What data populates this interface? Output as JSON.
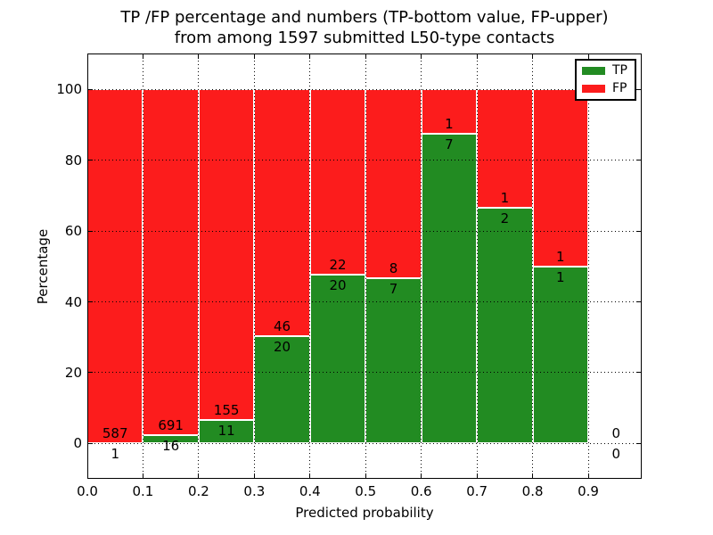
{
  "title": {
    "line1": "TP /FP percentage and numbers (TP-bottom value, FP-upper)",
    "line2": "from among 1597 submitted L50-type contacts"
  },
  "axes": {
    "xlabel": "Predicted probability",
    "ylabel": "Percentage"
  },
  "legend": {
    "items": [
      {
        "label": "TP",
        "color": "#228b22"
      },
      {
        "label": "FP",
        "color": "#fc1c1c"
      }
    ]
  },
  "chart_data": {
    "type": "bar",
    "stacked": true,
    "normalized": "each bin scaled to 100%, green TP fraction at bottom, red FP fraction on top",
    "title": "TP /FP percentage and numbers (TP-bottom value, FP-upper) from among 1597 submitted L50-type contacts",
    "xlabel": "Predicted probability",
    "ylabel": "Percentage",
    "total_contacts": 1597,
    "bin_width": 0.1,
    "categories": [
      "0.0-0.1",
      "0.1-0.2",
      "0.2-0.3",
      "0.3-0.4",
      "0.4-0.5",
      "0.5-0.6",
      "0.6-0.7",
      "0.7-0.8",
      "0.8-0.9",
      "0.9-1.0"
    ],
    "series": [
      {
        "name": "TP",
        "color": "#228b22",
        "counts": [
          1,
          16,
          11,
          20,
          20,
          7,
          7,
          2,
          1,
          0
        ]
      },
      {
        "name": "FP",
        "color": "#fc1c1c",
        "counts": [
          587,
          691,
          155,
          46,
          22,
          8,
          1,
          1,
          1,
          0
        ]
      }
    ],
    "tp_percent_heights": [
      0.17,
      2.26,
      6.63,
      30.3,
      47.62,
      46.67,
      87.5,
      66.67,
      50.0,
      0.0
    ],
    "xticks": [
      0.0,
      0.1,
      0.2,
      0.3,
      0.4,
      0.5,
      0.6,
      0.7,
      0.8,
      0.9
    ],
    "yticks": [
      0,
      20,
      40,
      60,
      80,
      100
    ],
    "xtick_labels": [
      "0.0",
      "0.1",
      "0.2",
      "0.3",
      "0.4",
      "0.5",
      "0.6",
      "0.7",
      "0.8",
      "0.9"
    ],
    "ytick_labels": [
      "0",
      "20",
      "40",
      "60",
      "80",
      "100"
    ],
    "xlim": [
      0,
      0.996
    ],
    "ylim": [
      -10,
      110.2
    ],
    "grid": {
      "style": "dotted",
      "color": "#000000"
    },
    "bar_edge_color": "#ffffff"
  }
}
